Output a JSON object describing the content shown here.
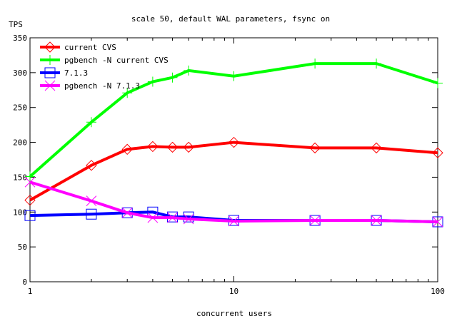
{
  "chart_data": {
    "type": "line",
    "title": "scale 50, default WAL parameters, fsync on",
    "xlabel": "concurrent users",
    "ylabel": "TPS",
    "xscale": "log",
    "xlim": [
      1,
      100
    ],
    "ylim": [
      0,
      350
    ],
    "xticks": [
      1,
      10,
      100
    ],
    "yticks": [
      0,
      50,
      100,
      150,
      200,
      250,
      300,
      350
    ],
    "grid": false,
    "legend_position": "top-left",
    "x": [
      1,
      2,
      3,
      4,
      5,
      6,
      10,
      25,
      50,
      100
    ],
    "series": [
      {
        "name": "current CVS",
        "color": "#ff0000",
        "marker": "diamond",
        "values": [
          117,
          167,
          190,
          194,
          193,
          193,
          200,
          192,
          192,
          185
        ]
      },
      {
        "name": "pgbench -N current CVS",
        "color": "#00ff00",
        "marker": "plus",
        "values": [
          151,
          229,
          271,
          287,
          293,
          303,
          295,
          313,
          313,
          285
        ]
      },
      {
        "name": "7.1.3",
        "color": "#0000ff",
        "marker": "square",
        "values": [
          95,
          97,
          99,
          100,
          93,
          93,
          88,
          88,
          88,
          86
        ]
      },
      {
        "name": "pgbench -N 7.1.3",
        "color": "#ff00ff",
        "marker": "cross",
        "values": [
          143,
          116,
          99,
          92,
          92,
          90,
          87,
          88,
          88,
          86
        ]
      }
    ]
  }
}
